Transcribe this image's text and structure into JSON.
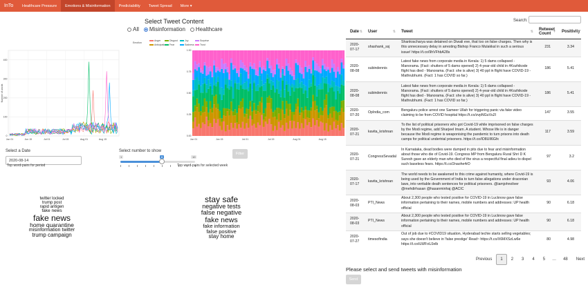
{
  "navbar": {
    "brand": "InTo",
    "tabs": [
      {
        "label": "Healthcare Pressure"
      },
      {
        "label": "Emotions & Misinformation"
      },
      {
        "label": "Predictability"
      },
      {
        "label": "Tweet Spread"
      },
      {
        "label": "More ▾"
      }
    ],
    "active_index": 1,
    "color": "#e05a3a"
  },
  "select_content": {
    "title": "Select Tweet Content",
    "options": [
      "All",
      "Misinformation",
      "Healthcare"
    ],
    "selected": "Misinformation"
  },
  "emotion_legend": {
    "title": "Emotion",
    "items": [
      {
        "label": "Anger",
        "color": "#f8766d"
      },
      {
        "label": "Anticipation",
        "color": "#cd9600"
      },
      {
        "label": "Disgust",
        "color": "#7cae00"
      },
      {
        "label": "Fear",
        "color": "#00be67"
      },
      {
        "label": "Joy",
        "color": "#00bfc4"
      },
      {
        "label": "Sadness",
        "color": "#00a9ff"
      },
      {
        "label": "Surprise",
        "color": "#c77cff"
      },
      {
        "label": "Trust",
        "color": "#ff61cc"
      }
    ]
  },
  "chart_data": [
    {
      "type": "line",
      "ylabel": "Number of words",
      "xlabel": "",
      "x": [
        "Jun 01",
        "Jun 15",
        "Jul 01",
        "Jul 15",
        "Aug 01",
        "Aug 15"
      ],
      "yticks": [
        0,
        100,
        200,
        300,
        400
      ],
      "ylim": [
        0,
        450
      ],
      "series_peaks": [
        {
          "name": "Fear",
          "x": "Jul 21",
          "y": 390
        },
        {
          "name": "Trust",
          "x": "Aug 10",
          "y": 340
        },
        {
          "name": "Sadness",
          "x": "Aug 12",
          "y": 280
        },
        {
          "name": "Anger",
          "x": "Jul 25",
          "y": 240
        }
      ],
      "grid": true
    },
    {
      "type": "bar",
      "stacked": true,
      "normalized": true,
      "x": [
        "Jun 01",
        "Jun 15",
        "Jul 01",
        "Jul 15",
        "Aug 01",
        "Aug 15"
      ],
      "yticks": [
        0.0,
        0.25,
        0.5,
        0.75,
        1.0
      ],
      "ylim": [
        0,
        1
      ],
      "series_shares": [
        {
          "name": "Anger",
          "value": 0.13
        },
        {
          "name": "Anticipation",
          "value": 0.14
        },
        {
          "name": "Disgust",
          "value": 0.08
        },
        {
          "name": "Fear",
          "value": 0.2
        },
        {
          "name": "Joy",
          "value": 0.08
        },
        {
          "name": "Sadness",
          "value": 0.13
        },
        {
          "name": "Surprise",
          "value": 0.06
        },
        {
          "name": "Trust",
          "value": 0.18
        }
      ],
      "grid": true
    }
  ],
  "controls": {
    "date_label": "Select a Date",
    "date_value": "2020-08-14",
    "slider_label": "Select number to show",
    "slider_min": 1,
    "slider_max": 10,
    "slider_value": 6,
    "filter_label": "Filter"
  },
  "wordclouds": [
    {
      "title": "Top word-pairs for period",
      "words": [
        {
          "text": "twitter locked",
          "size": 6
        },
        {
          "text": "trump post",
          "size": 6
        },
        {
          "text": "rapid antigen",
          "size": 6
        },
        {
          "text": "fake news",
          "size": 6.5
        },
        {
          "text": "fake news",
          "size": 12
        },
        {
          "text": "home quarantine",
          "size": 8.5
        },
        {
          "text": "misinformation twitter",
          "size": 7
        },
        {
          "text": "trump campaign",
          "size": 8
        }
      ]
    },
    {
      "title": "Top word-pairs for selected week",
      "words": [
        {
          "text": "stay safe",
          "size": 12
        },
        {
          "text": "negative tests",
          "size": 9
        },
        {
          "text": "false negative",
          "size": 9.5
        },
        {
          "text": "fake news",
          "size": 10.5
        },
        {
          "text": "fake information",
          "size": 7.5
        },
        {
          "text": "false positive",
          "size": 7.5
        },
        {
          "text": "stay home",
          "size": 8
        }
      ]
    }
  ],
  "table": {
    "search_label": "Search:",
    "search_value": "",
    "columns": [
      "Date",
      "User",
      "Tweet",
      "Retweet Count",
      "Positivity"
    ],
    "rows": [
      {
        "date": "2020-07-17",
        "user": "shashank_ssj",
        "tweet": "Shankracharya was detained on Diwali eve, that too on false charges. Then why is this unnecessary delay in arresting Bishop Franco Mulakkal in such a serious issue! https://t.co/9hVFhbA28s",
        "retweets": "231",
        "positivity": "3.34"
      },
      {
        "date": "2020-08-08",
        "user": "subindennis",
        "tweet": "Latest fake news from corporate media in Kerala: 1) 5 dams collapsed - Manorama. (Fact: shutters of 5 dams opened) 2) 4-year-old child in #Kozhikode flight has died - Manorama. (Fact: she is alive) 3) 40 ppl in flight have COVID-19 - Mathrubhumi. (Fact: 1 has COVID so far.)",
        "retweets": "186",
        "positivity": "5.41"
      },
      {
        "date": "2020-08-08",
        "user": "subindennis",
        "tweet": "Latest fake news from corporate media in Kerala: 1) 5 dams collapsed - Manorama. (Fact: shutters of 5 dams opened) 2) 4-year-old child in #Kozhikode flight has died - Manorama. (Fact: she is alive) 3) 40 ppl in flight have COVID-19 - Mathrubhumi. (Fact: 1 has COVID so far.)",
        "retweets": "186",
        "positivity": "5.41"
      },
      {
        "date": "2020-07-20",
        "user": "OpIndia_com",
        "tweet": "Bengaluru police arrest one Sameer Ullah for triggering panic via fake video claiming to be from COVID hospital https://t.co/zvpNGuVu2I",
        "retweets": "147",
        "positivity": "3.55"
      },
      {
        "date": "2020-07-21",
        "user": "kavita_krishnan",
        "tweet": "To the list of political prisoners who got Covid-19 while imprisoned on false charges by the Modi regime, add Sharjeel Imam. A student. Whose life is in danger because the Modi regime is weaponising the pandemic to turn prisons into death camps for political undertrial prisoners. https://t.co/lO8UIl6Gfx",
        "retweets": "117",
        "positivity": "3.59"
      },
      {
        "date": "2020-07-21",
        "user": "CongressSevadal",
        "tweet": "In Karnataka, dead bodies were dumped in pits due to fear and misinformation about those who die of Covid-19. Congress MP from Bengaluru Rural Shri D K Suresh gave an elderly man who died of the virus a respectful final adieu to dispel such baseless fears. https://t.co/2naohe4rD",
        "retweets": "97",
        "positivity": "3.2"
      },
      {
        "date": "2020-07-17",
        "user": "kavita_krishnan",
        "tweet": "The world needs to be awakened to this crime against humanity, where Covid-19 is being used by the Government of India to turn false allegations under draconian laws, into veritable death sentences for political prisoners. @iamjohnoliver @mehdirhasan @hasanminhaj @ACIC",
        "retweets": "93",
        "positivity": "4.06"
      },
      {
        "date": "2020-08-03",
        "user": "PTI_News",
        "tweet": "About 2,300 people who tested positive for COVID-19 in Lucknow gave false information pertaining to their names, mobile numbers and addresses: UP health official",
        "retweets": "90",
        "positivity": "6.18"
      },
      {
        "date": "2020-08-03",
        "user": "PTI_News",
        "tweet": "About 2,300 people who tested positive for COVID-19 in Lucknow gave false information pertaining to their names, mobile numbers and addresses: UP health official",
        "retweets": "90",
        "positivity": "6.18"
      },
      {
        "date": "2020-07-27",
        "user": "timesofindia",
        "tweet": "Out of job due to #COVID19 situation, Hyderabad techie starts selling vegetables; says she doesn't believe in 'false prestige' Read~ https://t.co/X6MXSzLw6e https://t.co/iLWFoUJelb",
        "retweets": "80",
        "positivity": "4.98"
      }
    ]
  },
  "pagination": {
    "previous": "Previous",
    "pages": [
      "1",
      "2",
      "3",
      "4",
      "5"
    ],
    "ellipsis": "…",
    "last": "48",
    "next": "Next",
    "current": "1"
  },
  "send": {
    "title": "Please select and send tweets with misinformation",
    "button": "Send"
  }
}
